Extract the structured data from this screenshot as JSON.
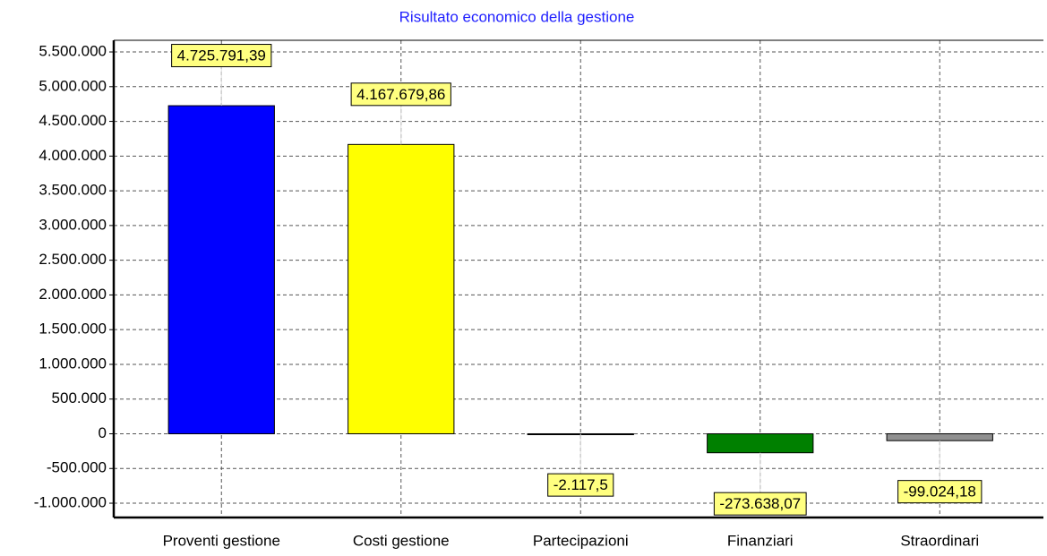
{
  "chart_data": {
    "type": "bar",
    "title": "Risultato economico della gestione",
    "categories": [
      "Proventi gestione",
      "Costi gestione",
      "Partecipazioni",
      "Finanziari",
      "Straordinari"
    ],
    "values": [
      4725791.39,
      4167679.86,
      -2117.5,
      -273638.07,
      -99024.18
    ],
    "value_labels": [
      "4.725.791,39",
      "4.167.679,86",
      "-2.117,5",
      "-273.638,07",
      "-99.024,18"
    ],
    "colors": [
      "#0000ff",
      "#ffff00",
      "#404040",
      "#008000",
      "#909090"
    ],
    "ylim": [
      -1206000,
      5668000
    ],
    "yticks": [
      {
        "value": -1000000,
        "label": "-1.000.000"
      },
      {
        "value": -500000,
        "label": "-500.000"
      },
      0,
      {
        "value": 500000,
        "label": "500.000"
      },
      {
        "value": 1000000,
        "label": "1.000.000"
      },
      {
        "value": 1500000,
        "label": "1.500.000"
      },
      {
        "value": 2000000,
        "label": "2.000.000"
      },
      {
        "value": 2500000,
        "label": "2.500.000"
      },
      {
        "value": 3000000,
        "label": "3.000.000"
      },
      {
        "value": 3500000,
        "label": "3.500.000"
      },
      {
        "value": 4000000,
        "label": "4.000.000"
      },
      {
        "value": 4500000,
        "label": "4.500.000"
      },
      {
        "value": 5000000,
        "label": "5.000.000"
      },
      {
        "value": 5500000,
        "label": "5.500.000"
      }
    ],
    "grid": true
  }
}
